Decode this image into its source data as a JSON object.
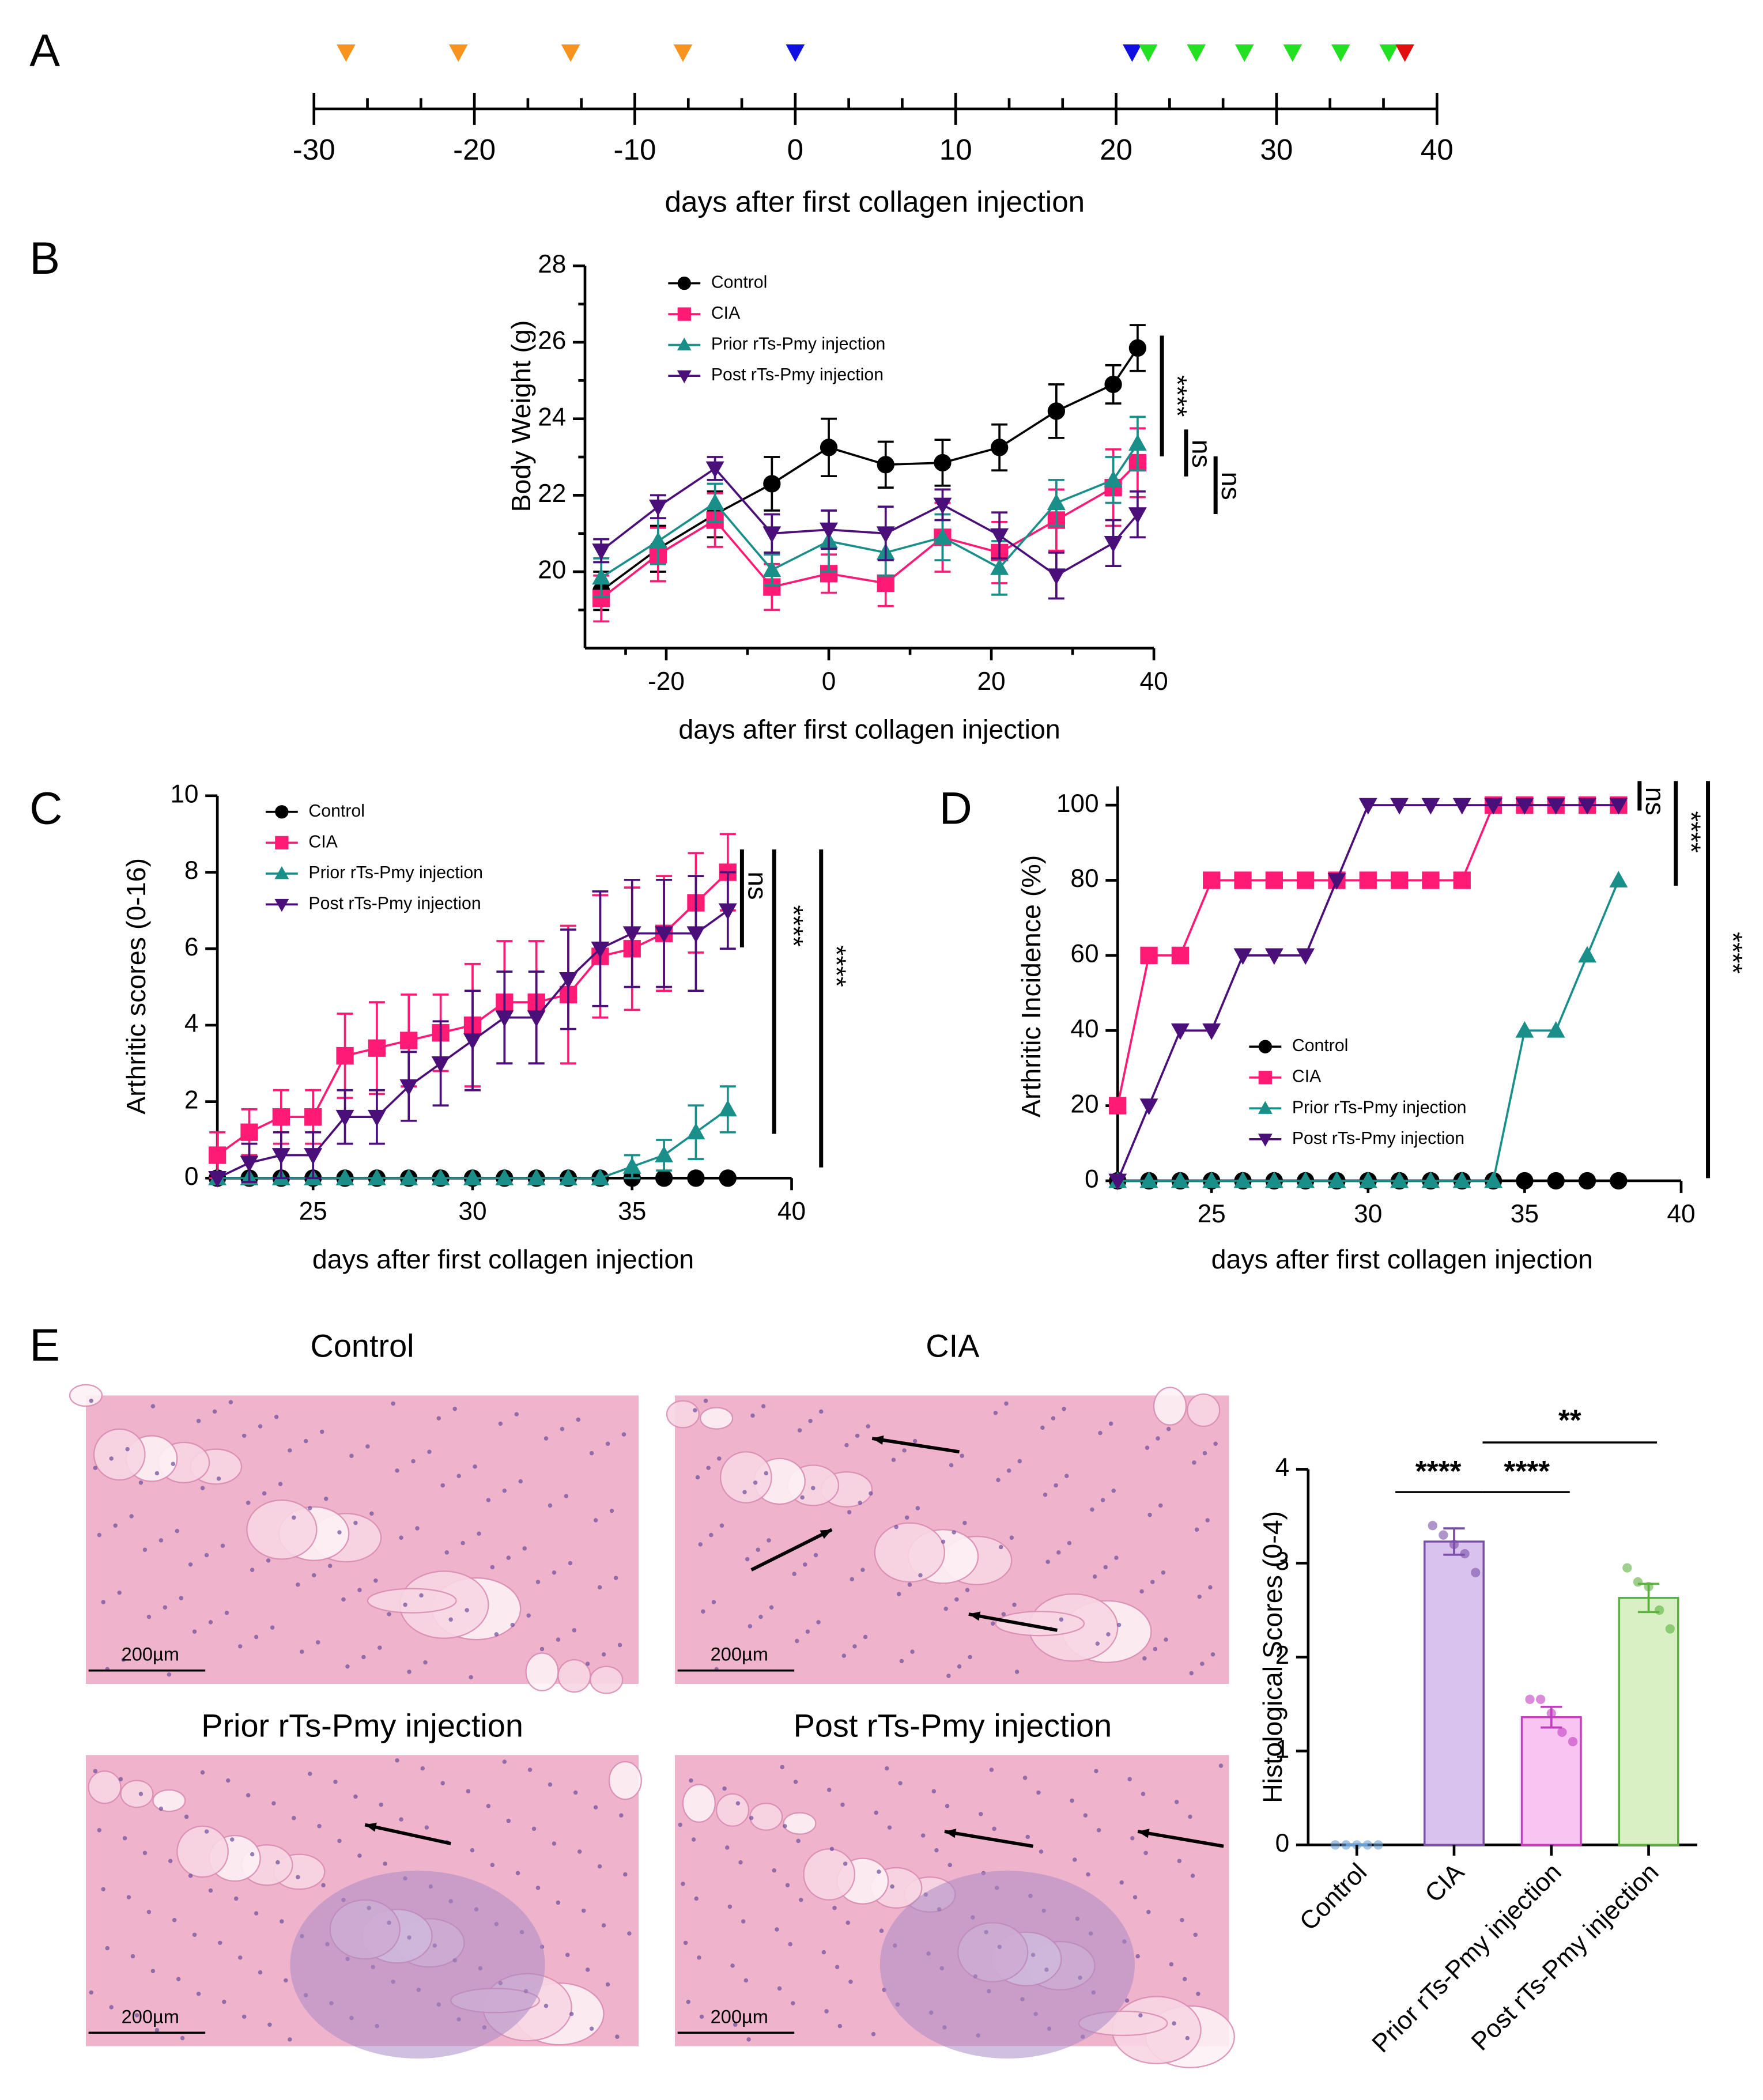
{
  "chart_data": [
    {
      "type": "timeline",
      "panel": "A",
      "xlabel": "days after first collagen injection",
      "xlim": [
        -30,
        40
      ],
      "xticks": [
        -30,
        -20,
        -10,
        0,
        10,
        20,
        30,
        40
      ],
      "minor_divisions": 3,
      "markers": [
        {
          "color": "#f7931e",
          "x": [
            -28,
            -21,
            -14,
            -7
          ]
        },
        {
          "color": "#1010e0",
          "x": [
            0,
            21
          ]
        },
        {
          "color": "#22e022",
          "x": [
            22,
            25,
            28,
            31,
            34,
            37
          ]
        },
        {
          "color": "#e01010",
          "x": [
            38
          ]
        }
      ]
    },
    {
      "type": "line",
      "panel": "B",
      "xlabel": "days after first collagen injection",
      "ylabel": "Body Weight (g)",
      "xlim": [
        -30,
        40
      ],
      "xticks": [
        -20,
        0,
        20,
        40
      ],
      "ylim": [
        18,
        28
      ],
      "yticks": [
        20,
        22,
        24,
        26,
        28
      ],
      "minor_divisions": 2,
      "x": [
        -28,
        -21,
        -14,
        -7,
        0,
        7,
        14,
        21,
        28,
        35,
        38
      ],
      "series": [
        {
          "name": "Control",
          "color": "#000000",
          "marker": "circle",
          "values": [
            19.5,
            20.6,
            21.5,
            22.3,
            23.25,
            22.8,
            22.85,
            23.25,
            24.2,
            24.9,
            25.85
          ],
          "errors": [
            0.5,
            0.6,
            0.6,
            0.7,
            0.75,
            0.6,
            0.6,
            0.6,
            0.7,
            0.5,
            0.6
          ]
        },
        {
          "name": "CIA",
          "color": "#ff1a75",
          "marker": "square",
          "values": [
            19.3,
            20.45,
            21.35,
            19.6,
            19.95,
            19.7,
            20.9,
            20.5,
            21.35,
            22.2,
            22.85
          ],
          "errors": [
            0.6,
            0.7,
            0.7,
            0.6,
            0.5,
            0.6,
            0.9,
            0.8,
            0.8,
            1.0,
            0.9
          ]
        },
        {
          "name": "Prior rTs-Pmy injection",
          "color": "#1a8f8a",
          "marker": "triangle-up",
          "values": [
            19.85,
            20.8,
            21.8,
            20.05,
            20.8,
            20.5,
            20.9,
            20.1,
            21.8,
            22.4,
            23.35
          ],
          "errors": [
            0.5,
            0.6,
            0.5,
            0.4,
            0.8,
            0.6,
            0.6,
            0.7,
            0.6,
            0.6,
            0.7
          ]
        },
        {
          "name": "Post rTs-Pmy injection",
          "color": "#4b0f7a",
          "marker": "triangle-down",
          "values": [
            20.55,
            21.7,
            22.7,
            21.0,
            21.1,
            21.0,
            21.75,
            20.95,
            19.9,
            20.75,
            21.5
          ],
          "errors": [
            0.3,
            0.3,
            0.3,
            0.5,
            0.5,
            0.7,
            0.4,
            0.6,
            0.6,
            0.6,
            0.6
          ]
        }
      ],
      "annotations": [
        "****",
        "ns",
        "ns"
      ]
    },
    {
      "type": "line",
      "panel": "C",
      "xlabel": "days after first collagen injection",
      "ylabel": "Arthritic scores (0-16)",
      "xlim": [
        22,
        40
      ],
      "xticks": [
        25,
        30,
        35,
        40
      ],
      "ylim": [
        0,
        10
      ],
      "yticks": [
        0,
        2,
        4,
        6,
        8,
        10
      ],
      "x": [
        22,
        23,
        24,
        25,
        26,
        27,
        28,
        29,
        30,
        31,
        32,
        33,
        34,
        35,
        36,
        37,
        38
      ],
      "series": [
        {
          "name": "Control",
          "color": "#000000",
          "marker": "circle",
          "values": [
            0,
            0,
            0,
            0,
            0,
            0,
            0,
            0,
            0,
            0,
            0,
            0,
            0,
            0,
            0,
            0,
            0
          ]
        },
        {
          "name": "CIA",
          "color": "#ff1a75",
          "marker": "square",
          "values": [
            0.6,
            1.2,
            1.6,
            1.6,
            3.2,
            3.4,
            3.6,
            3.8,
            4.0,
            4.6,
            4.6,
            4.8,
            5.8,
            6.0,
            6.4,
            7.2,
            8.0
          ],
          "errors": [
            0.6,
            0.6,
            0.7,
            0.7,
            1.1,
            1.2,
            1.2,
            1.0,
            1.6,
            1.6,
            1.6,
            1.8,
            1.6,
            1.6,
            1.5,
            1.3,
            1.0
          ]
        },
        {
          "name": "Prior rTs-Pmy injection",
          "color": "#1a8f8a",
          "marker": "triangle-up",
          "values": [
            0,
            0,
            0,
            0,
            0,
            0,
            0,
            0,
            0,
            0,
            0,
            0,
            0,
            0.3,
            0.6,
            1.2,
            1.8
          ],
          "errors": [
            0,
            0,
            0,
            0,
            0,
            0,
            0,
            0,
            0,
            0,
            0,
            0,
            0,
            0.3,
            0.4,
            0.7,
            0.6
          ]
        },
        {
          "name": "Post rTs-Pmy injection",
          "color": "#4b0f7a",
          "marker": "triangle-down",
          "values": [
            0,
            0.4,
            0.6,
            0.6,
            1.6,
            1.6,
            2.4,
            3.0,
            3.6,
            4.2,
            4.2,
            5.2,
            6.0,
            6.4,
            6.4,
            6.4,
            7.0
          ],
          "errors": [
            0,
            0.5,
            0.6,
            0.6,
            0.7,
            0.7,
            0.9,
            1.1,
            1.3,
            1.2,
            1.2,
            1.3,
            1.5,
            1.4,
            1.4,
            1.5,
            1.0
          ]
        }
      ],
      "annotations": [
        "ns",
        "****",
        "****"
      ]
    },
    {
      "type": "line",
      "panel": "D",
      "xlabel": "days after first collagen injection",
      "ylabel": "Arthritic Incidence (%)",
      "xlim": [
        22,
        40
      ],
      "xticks": [
        25,
        30,
        35,
        40
      ],
      "ylim": [
        0,
        105
      ],
      "yticks": [
        0,
        20,
        40,
        60,
        80,
        100
      ],
      "x": [
        22,
        23,
        24,
        25,
        26,
        27,
        28,
        29,
        30,
        31,
        32,
        33,
        34,
        35,
        36,
        37,
        38
      ],
      "series": [
        {
          "name": "Control",
          "color": "#000000",
          "marker": "circle",
          "values": [
            0,
            0,
            0,
            0,
            0,
            0,
            0,
            0,
            0,
            0,
            0,
            0,
            0,
            0,
            0,
            0,
            0
          ]
        },
        {
          "name": "CIA",
          "color": "#ff1a75",
          "marker": "square",
          "values": [
            20,
            60,
            60,
            80,
            80,
            80,
            80,
            80,
            80,
            80,
            80,
            80,
            100,
            100,
            100,
            100,
            100
          ]
        },
        {
          "name": "Prior rTs-Pmy injection",
          "color": "#1a8f8a",
          "marker": "triangle-up",
          "values": [
            0,
            0,
            0,
            0,
            0,
            0,
            0,
            0,
            0,
            0,
            0,
            0,
            0,
            40,
            40,
            60,
            80
          ]
        },
        {
          "name": "Post rTs-Pmy injection",
          "color": "#4b0f7a",
          "marker": "triangle-down",
          "values": [
            0,
            20,
            40,
            40,
            60,
            60,
            60,
            80,
            100,
            100,
            100,
            100,
            100,
            100,
            100,
            100,
            100
          ]
        }
      ],
      "annotations": [
        "ns",
        "****",
        "****"
      ]
    },
    {
      "type": "bar",
      "panel": "E",
      "ylabel": "Histological Scores (0-4)",
      "ylim": [
        0,
        4
      ],
      "yticks": [
        0,
        1,
        2,
        3,
        4
      ],
      "categories": [
        "Control",
        "CIA",
        "Prior rTs-Pmy injection",
        "Post rTs-Pmy injection"
      ],
      "values": [
        0,
        3.23,
        1.36,
        2.63
      ],
      "errors": [
        0,
        0.14,
        0.11,
        0.15
      ],
      "points": [
        [
          0,
          0,
          0,
          0,
          0
        ],
        [
          3.4,
          3.3,
          3.2,
          3.1,
          2.9
        ],
        [
          1.55,
          1.55,
          1.4,
          1.2,
          1.1
        ],
        [
          2.95,
          2.8,
          2.75,
          2.5,
          2.3
        ]
      ],
      "colors": [
        "#ffffff",
        "#d9c3ee",
        "#f9c4f2",
        "#d8f0c4"
      ],
      "edgecolors": [
        "#6aa0d8",
        "#7b4fa8",
        "#c040c0",
        "#5cb040"
      ],
      "annotations": [
        "****",
        "****",
        "**"
      ]
    }
  ],
  "histology": {
    "images": [
      {
        "title": "Control",
        "scale_bar": "200µm"
      },
      {
        "title": "CIA",
        "scale_bar": "200µm"
      },
      {
        "title": "Prior rTs-Pmy injection",
        "scale_bar": "200µm"
      },
      {
        "title": "Post rTs-Pmy injection",
        "scale_bar": "200µm"
      }
    ]
  }
}
